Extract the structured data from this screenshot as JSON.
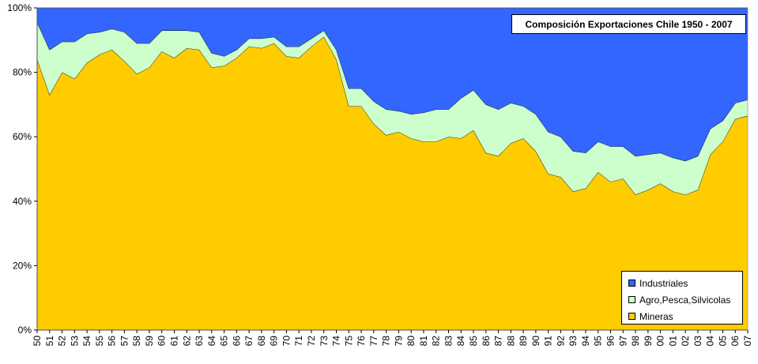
{
  "chart_data": {
    "type": "area",
    "stacked": true,
    "title": "Composición Exportaciones Chile 1950 - 2007",
    "categories": [
      "50",
      "51",
      "52",
      "53",
      "54",
      "55",
      "56",
      "57",
      "58",
      "59",
      "60",
      "61",
      "62",
      "63",
      "64",
      "65",
      "66",
      "67",
      "68",
      "69",
      "70",
      "71",
      "72",
      "73",
      "74",
      "75",
      "76",
      "77",
      "78",
      "79",
      "80",
      "81",
      "82",
      "83",
      "84",
      "85",
      "86",
      "87",
      "88",
      "89",
      "90",
      "91",
      "92",
      "93",
      "94",
      "95",
      "96",
      "97",
      "98",
      "99",
      "00",
      "01",
      "02",
      "03",
      "04",
      "05",
      "06",
      "07"
    ],
    "ylim": [
      0,
      100
    ],
    "yticks": [
      "0%",
      "20%",
      "40%",
      "60%",
      "80%",
      "100%"
    ],
    "ytick_values": [
      0,
      20,
      40,
      60,
      80,
      100
    ],
    "grid": false,
    "legend_position": "bottom-right",
    "series": [
      {
        "name": "Mineras",
        "color": "#ffcc00",
        "values": [
          84,
          73,
          80,
          78,
          83,
          85.5,
          87,
          83.5,
          79.5,
          81.5,
          86.5,
          84.5,
          87.5,
          87,
          81.5,
          82,
          84.5,
          88,
          87.5,
          89,
          85,
          84.5,
          88,
          91,
          84,
          69.5,
          69.5,
          64,
          60.5,
          61.5,
          59.5,
          58.5,
          58.5,
          60,
          59.5,
          62,
          55,
          54,
          58,
          59.5,
          55.5,
          48.5,
          47.5,
          43,
          44,
          49,
          46,
          47,
          42,
          43.5,
          45.5,
          43,
          42,
          43.5,
          54.5,
          58.5,
          65.5,
          66.5
        ]
      },
      {
        "name": "Agro,Pesca,Silvicolas",
        "color": "#ccffcc",
        "values": [
          11.5,
          14,
          9.5,
          11.5,
          9,
          7,
          6.5,
          9,
          9.5,
          7.5,
          6.5,
          8.5,
          5.5,
          5.5,
          4.5,
          3,
          2.5,
          2.5,
          3,
          2,
          3,
          3.5,
          2.5,
          2,
          3,
          5.5,
          5.5,
          7,
          8,
          6.5,
          7.5,
          9,
          10,
          8.5,
          12.5,
          12.5,
          15,
          14.5,
          12.5,
          10,
          11.5,
          13,
          12.5,
          12.5,
          11,
          9.5,
          11,
          10,
          12,
          11,
          9.5,
          10.5,
          10.5,
          10.5,
          8,
          6.5,
          5,
          5
        ]
      },
      {
        "name": "Industriales",
        "color": "#3366ff",
        "values": [
          4.5,
          13,
          10.5,
          10.5,
          8,
          7.5,
          6.5,
          7.5,
          11,
          11,
          7,
          7,
          7,
          7.5,
          14,
          15,
          13,
          9.5,
          9.5,
          9,
          12,
          12,
          9.5,
          7,
          13,
          25,
          25,
          29,
          31.5,
          32,
          33,
          32.5,
          31.5,
          31.5,
          28,
          25.5,
          30,
          31.5,
          29.5,
          30.5,
          33,
          38.5,
          40,
          44.5,
          45,
          41.5,
          43,
          43,
          46,
          45.5,
          45,
          46.5,
          47.5,
          46,
          37.5,
          35,
          29.5,
          28.5
        ]
      }
    ]
  }
}
